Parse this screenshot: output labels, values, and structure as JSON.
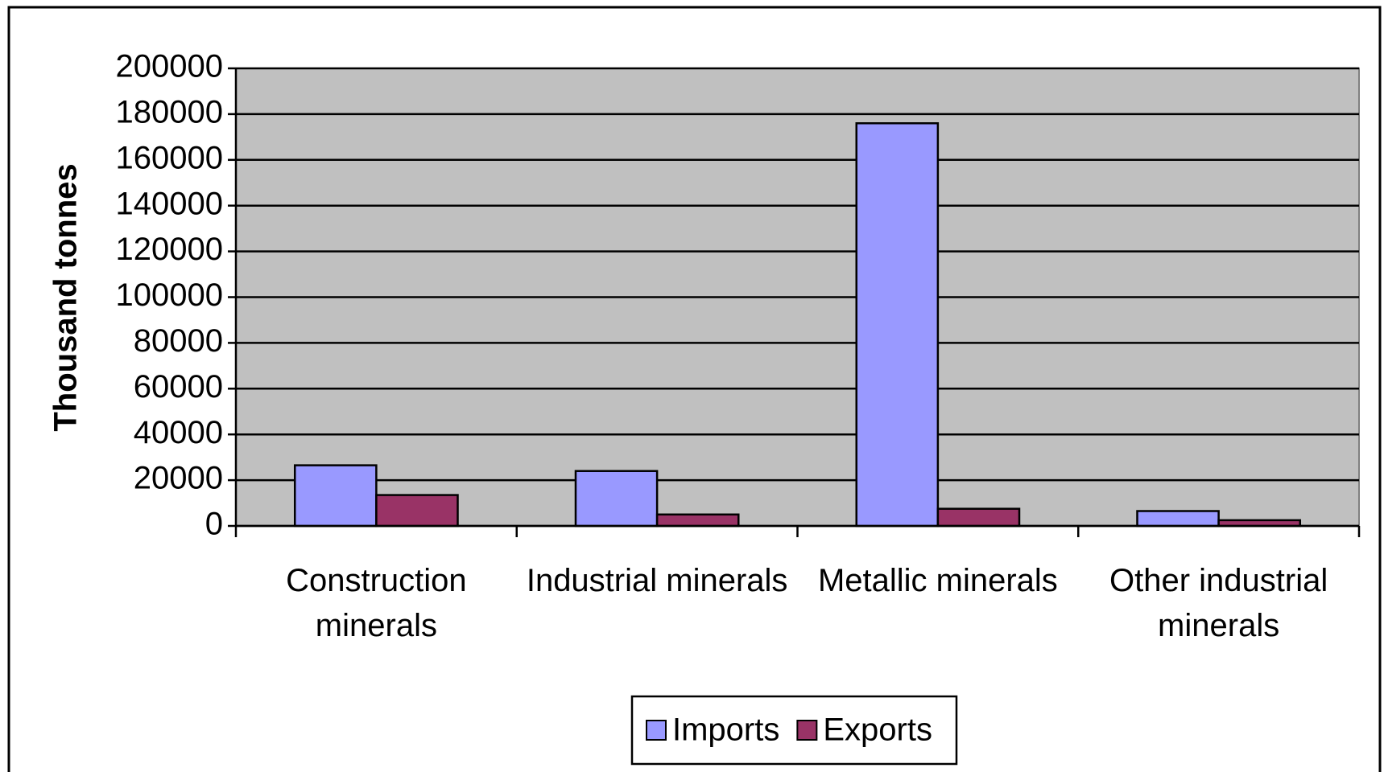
{
  "chart_data": {
    "type": "bar",
    "y_label": "Thousand tonnes",
    "categories": [
      "Construction minerals",
      "Industrial minerals",
      "Metallic minerals",
      "Other industrial minerals"
    ],
    "series": [
      {
        "name": "Imports",
        "color": "#9999ff",
        "values": [
          26500,
          24000,
          176000,
          6500
        ]
      },
      {
        "name": "Exports",
        "color": "#993366",
        "values": [
          13500,
          5000,
          7500,
          2500
        ]
      }
    ],
    "ylim": [
      0,
      200000
    ],
    "yticks": [
      0,
      20000,
      40000,
      60000,
      80000,
      100000,
      120000,
      140000,
      160000,
      180000,
      200000
    ],
    "grid": true,
    "plot_background": "#c0c0c0",
    "legend": "bottom"
  }
}
